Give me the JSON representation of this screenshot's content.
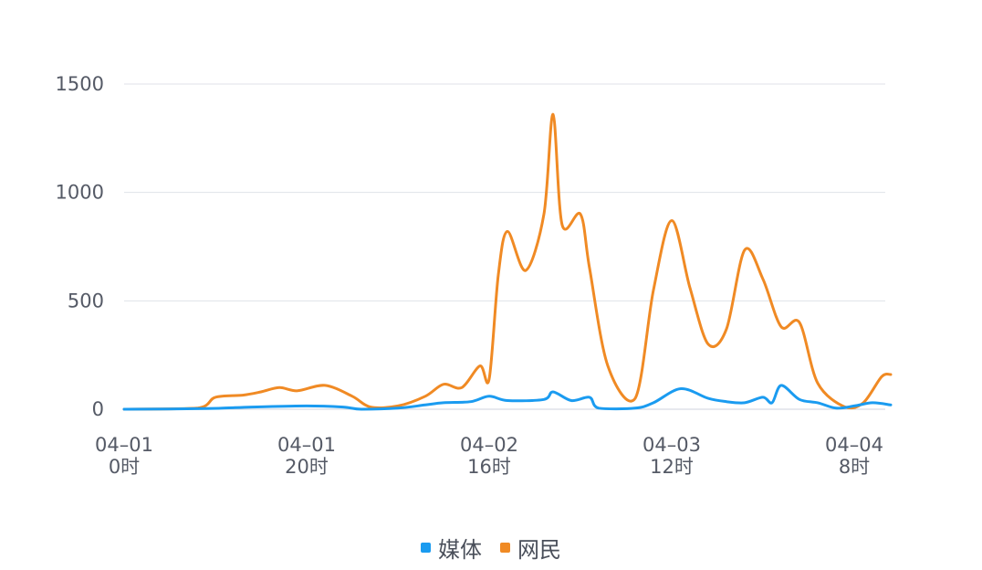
{
  "chart_data": {
    "type": "line",
    "title": "",
    "xlabel": "",
    "ylabel": "",
    "ylim": [
      0,
      1500
    ],
    "yticks": [
      0,
      500,
      1000,
      1500
    ],
    "grid": true,
    "legend_position": "bottom-center",
    "x_tick_labels": [
      {
        "date": "04-01",
        "hour": "0时"
      },
      {
        "date": "04-01",
        "hour": "20时"
      },
      {
        "date": "04-02",
        "hour": "16时"
      },
      {
        "date": "04-03",
        "hour": "12时"
      },
      {
        "date": "04-04",
        "hour": "8时"
      }
    ],
    "series": [
      {
        "name": "媒体",
        "color": "#1a9bf0",
        "points": [
          [
            "04-01 0时",
            0
          ],
          [
            "04-01 9时",
            3
          ],
          [
            "04-01 14时",
            10
          ],
          [
            "04-01 20时",
            15
          ],
          [
            "04-02 0时",
            10
          ],
          [
            "04-02 2时",
            0
          ],
          [
            "04-02 6时",
            5
          ],
          [
            "04-02 9时",
            20
          ],
          [
            "04-02 11时",
            30
          ],
          [
            "04-02 14时",
            35
          ],
          [
            "04-02 16时",
            60
          ],
          [
            "04-02 18时",
            40
          ],
          [
            "04-02 22时",
            45
          ],
          [
            "04-02 23时",
            80
          ],
          [
            "04-03 1时",
            40
          ],
          [
            "04-03 3时",
            55
          ],
          [
            "04-03 4时",
            5
          ],
          [
            "04-03 8时",
            5
          ],
          [
            "04-03 10时",
            30
          ],
          [
            "04-03 13时",
            95
          ],
          [
            "04-03 16时",
            50
          ],
          [
            "04-03 18時",
            35
          ],
          [
            "04-03 20时",
            30
          ],
          [
            "04-03 22时",
            55
          ],
          [
            "04-03 23时",
            30
          ],
          [
            "04-04 0时",
            110
          ],
          [
            "04-04 2时",
            45
          ],
          [
            "04-04 4时",
            30
          ],
          [
            "04-04 6时",
            5
          ],
          [
            "04-04 8时",
            15
          ],
          [
            "04-04 10时",
            30
          ],
          [
            "04-04 12时",
            20
          ]
        ]
      },
      {
        "name": "网民",
        "color": "#f08a24",
        "points": [
          [
            "04-01 0时",
            0
          ],
          [
            "04-01 8时",
            5
          ],
          [
            "04-01 10时",
            55
          ],
          [
            "04-01 13时",
            65
          ],
          [
            "04-01 15时",
            80
          ],
          [
            "04-01 17时",
            100
          ],
          [
            "04-01 19时",
            85
          ],
          [
            "04-01 22时",
            110
          ],
          [
            "04-02 1时",
            60
          ],
          [
            "04-02 3时",
            10
          ],
          [
            "04-02 6时",
            15
          ],
          [
            "04-02 9时",
            60
          ],
          [
            "04-02 11時",
            115
          ],
          [
            "04-02 13時",
            100
          ],
          [
            "04-02 15时",
            200
          ],
          [
            "04-02 16时",
            140
          ],
          [
            "04-02 17时",
            620
          ],
          [
            "04-02 18时",
            820
          ],
          [
            "04-02 20时",
            640
          ],
          [
            "04-02 22时",
            900
          ],
          [
            "04-02 23时",
            1360
          ],
          [
            "04-03 0时",
            850
          ],
          [
            "04-03 2时",
            900
          ],
          [
            "04-03 3时",
            650
          ],
          [
            "04-03 5时",
            200
          ],
          [
            "04-03 8时",
            50
          ],
          [
            "04-03 10时",
            550
          ],
          [
            "04-03 12时",
            870
          ],
          [
            "04-03 14时",
            560
          ],
          [
            "04-03 16时",
            300
          ],
          [
            "04-03 18时",
            370
          ],
          [
            "04-03 20时",
            735
          ],
          [
            "04-03 22时",
            600
          ],
          [
            "04-04 0时",
            380
          ],
          [
            "04-04 2时",
            400
          ],
          [
            "04-04 4时",
            120
          ],
          [
            "04-04 7时",
            10
          ],
          [
            "04-04 9时",
            30
          ],
          [
            "04-04 11时",
            150
          ],
          [
            "04-04 12时",
            160
          ]
        ]
      }
    ]
  },
  "legend": {
    "items": [
      {
        "label": "媒体",
        "color": "#1a9bf0"
      },
      {
        "label": "网民",
        "color": "#f08a24"
      }
    ]
  }
}
